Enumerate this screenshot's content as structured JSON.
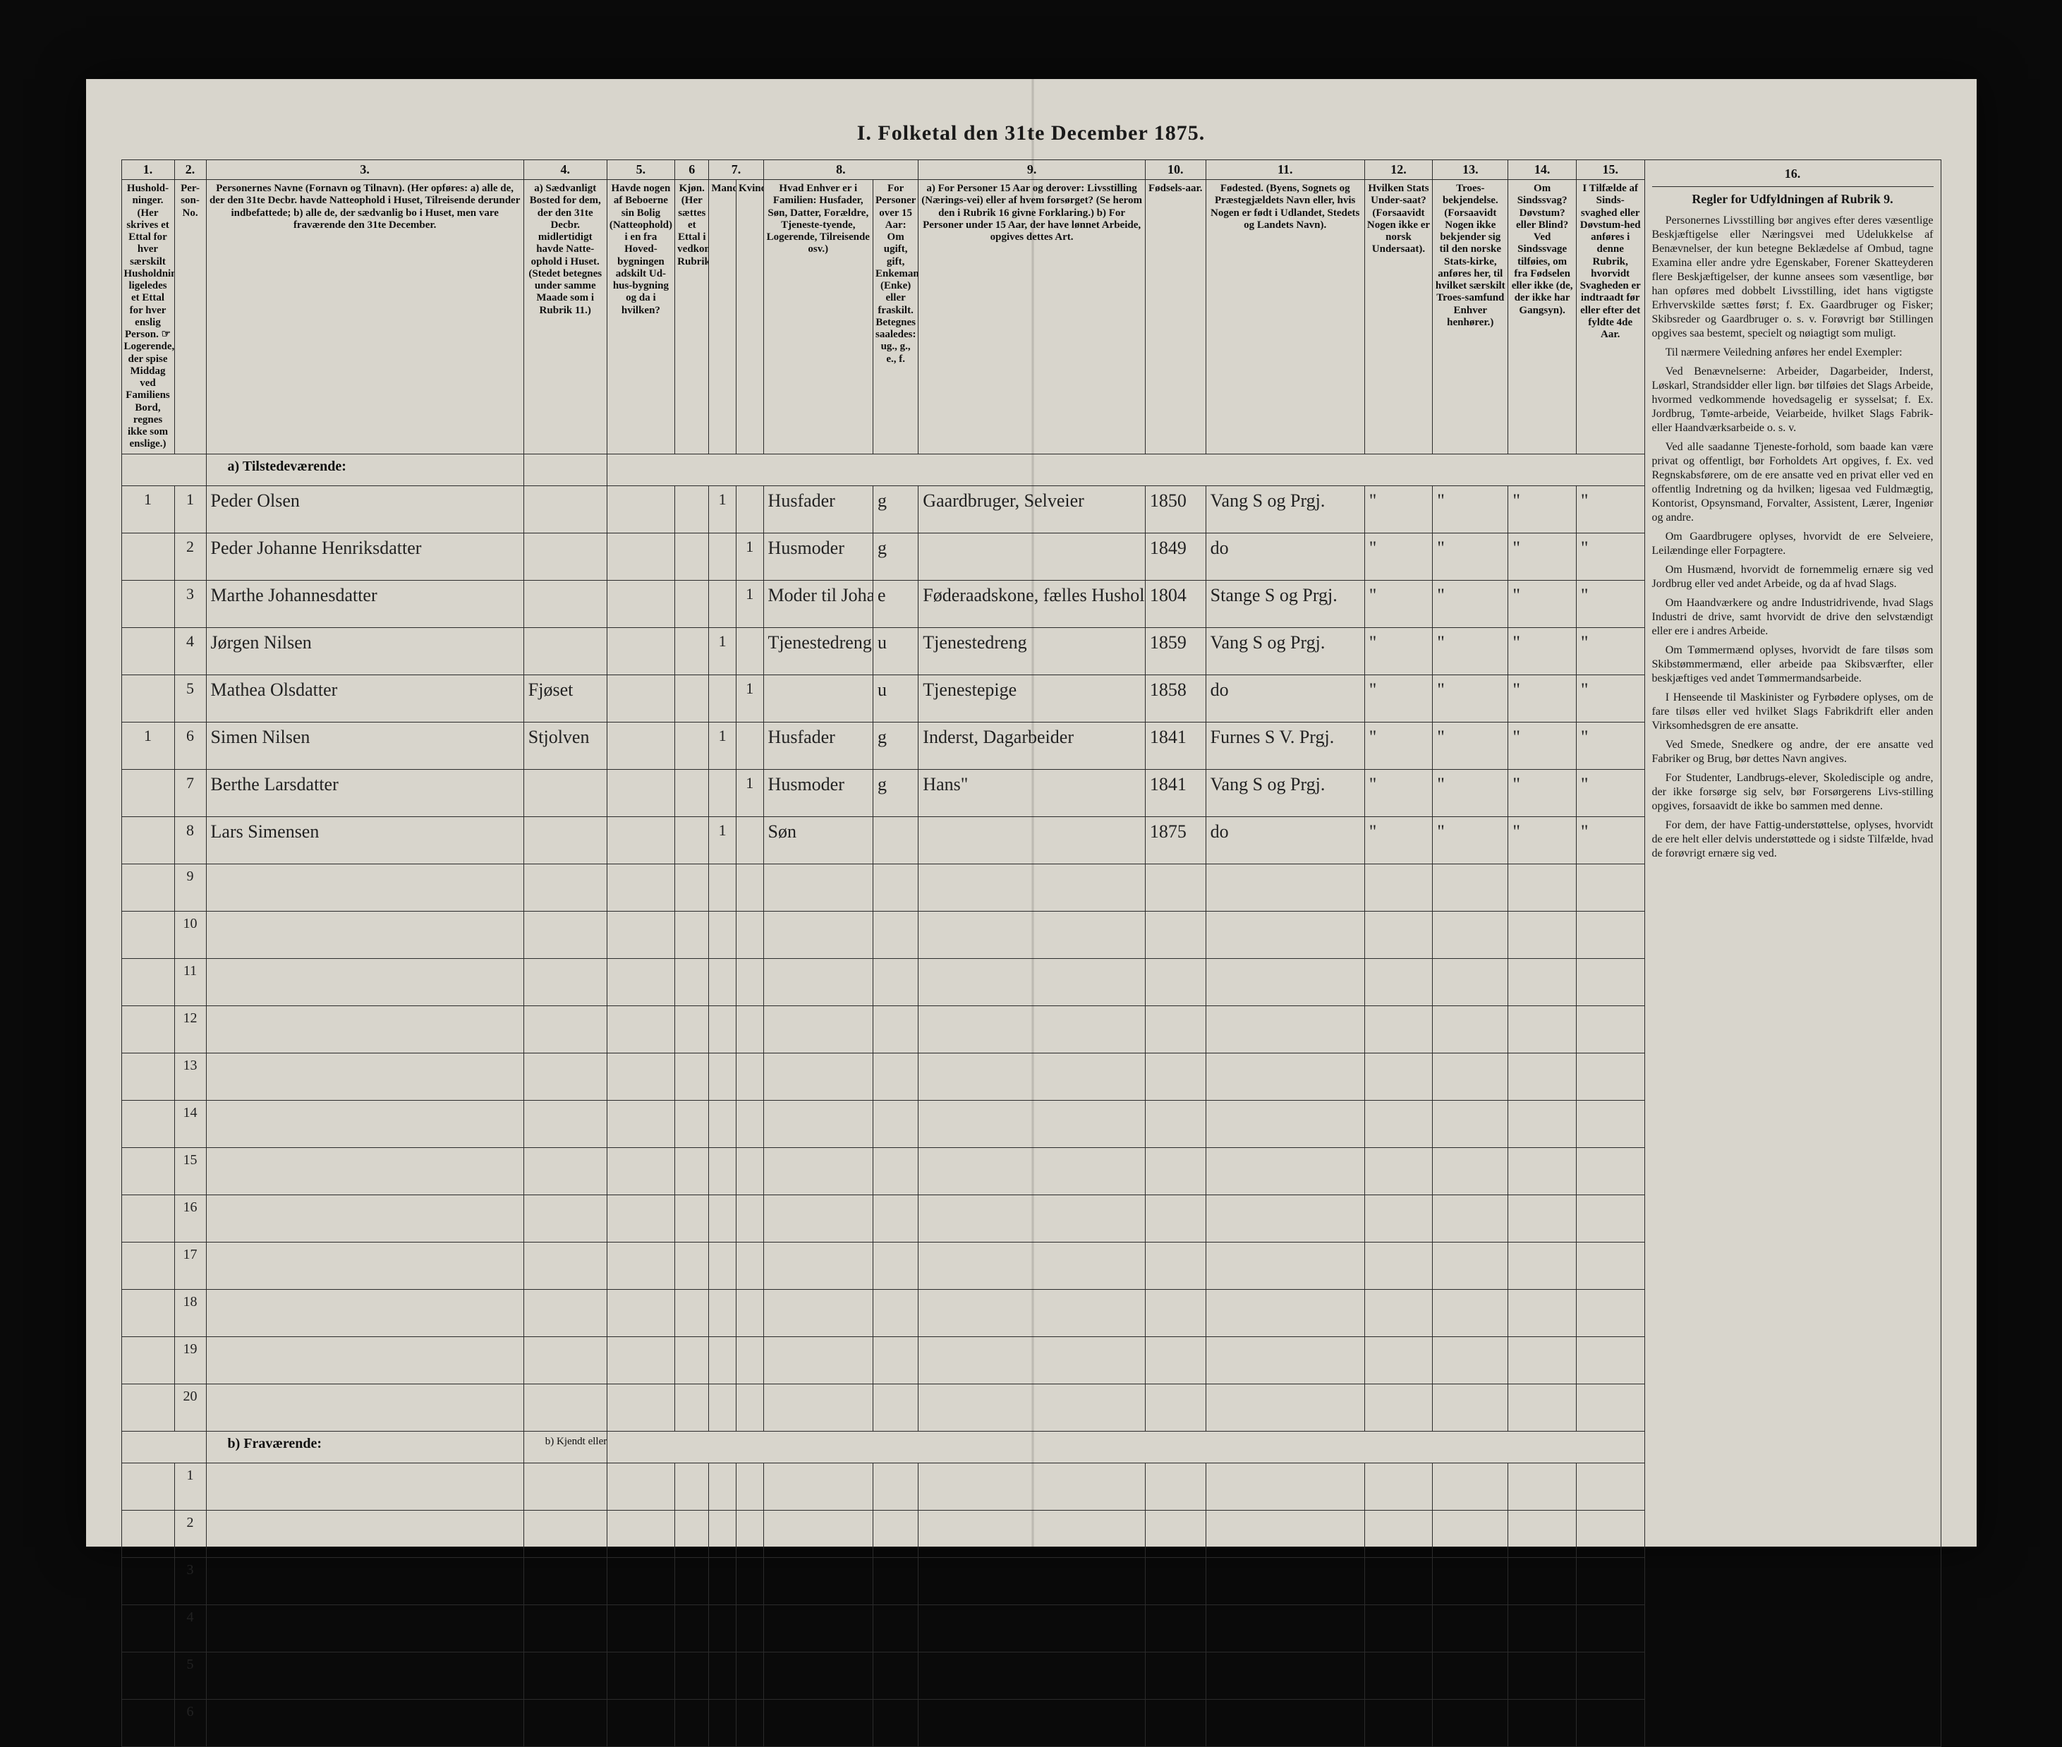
{
  "title": "I.  Folketal den 31te December 1875.",
  "colnums": [
    "1.",
    "2.",
    "3.",
    "4.",
    "5.",
    "6",
    "7.",
    "8.",
    "9.",
    "10.",
    "11.",
    "12.",
    "13.",
    "14.",
    "15.",
    "16."
  ],
  "headers": {
    "c1": "Hushold-\nninger.\n(Her skrives et Ettal for hver særskilt Husholdning; ligeledes et Ettal for hver enslig Person.\n☞ Logerende, der spise Middag ved Familiens Bord, regnes ikke som enslige.)",
    "c2": "Per-\nson-\nNo.",
    "c3": "Personernes Navne (Fornavn og Tilnavn).\n(Her opføres:\na) alle de, der den 31te Decbr. havde Natteophold i Huset, Tilreisende derunder indbefattede;\nb) alle de, der sædvanlig bo i Huset, men vare fraværende den 31te December.",
    "c4": "a) Sædvanligt Bosted for dem, der den 31te Decbr. midlertidigt havde Natte-ophold i Huset. (Stedet betegnes under samme Maade som i Rubrik 11.)",
    "c5": "Havde nogen af Beboerne sin Bolig (Natteophold) i en fra Hoved-bygningen adskilt Ud-hus-bygning og da i hvilken?",
    "c6": "Kjøn.\n(Her sættes et Ettal i vedkommende Rubrik.)",
    "c7a": "Mandkjøn.",
    "c7b": "Kvindekjøn.",
    "c8": "Hvad Enhver er i Familien:\nHusfader, Søn, Datter, Forældre, Tjeneste-tyende, Logerende, Tilreisende osv.)",
    "c8b": "For Personer over 15 Aar: Om ugift, gift, Enkemand (Enke) eller fraskilt.\nBetegnes saaledes: ug., g., e., f.",
    "c9": "a) For Personer 15 Aar og derover: Livsstilling (Nærings-vei) eller af hvem forsørget? (Se herom den i Rubrik 16 givne Forklaring.)\nb) For Personer under 15 Aar, der have lønnet Arbeide, opgives dettes Art.",
    "c10": "Fødsels-aar.",
    "c11": "Fødested.\n(Byens, Sognets og Præstegjældets Navn eller, hvis Nogen er født i Udlandet, Stedets og Landets Navn).",
    "c12": "Hvilken Stats Under-saat?\n(Forsaavidt Nogen ikke er norsk Undersaat).",
    "c13": "Troes-bekjendelse.\n(Forsaavidt Nogen ikke bekjender sig til den norske Stats-kirke, anføres her, til hvilket særskilt Troes-samfund Enhver henhører.)",
    "c14": "Om Sindssvag? Døvstum? eller Blind?\nVed Sindssvage tilføies, om fra Fødselen eller ikke (de, der ikke har Gangsyn).",
    "c15": "I Tilfælde af Sinds-svaghed eller Døvstum-hed anføres i denne Rubrik, hvorvidt Svagheden er indtraadt før eller efter det fyldte 4de Aar."
  },
  "section_a": "a) Tilstedeværende:",
  "section_b": "b) Fraværende:",
  "col4_note_b": "b) Kjendt eller formodet Opholdssted.",
  "rows": [
    {
      "hh": "1",
      "no": "1",
      "name": "Peder Olsen",
      "c4": "",
      "c5": "",
      "m": "1",
      "k": "",
      "role": "Husfader",
      "civ": "g",
      "occ": "Gaardbruger, Selveier",
      "year": "1850",
      "place": "Vang S og Prgj.",
      "c12": "\"",
      "c13": "\"",
      "c14": "\"",
      "c15": "\""
    },
    {
      "hh": "",
      "no": "2",
      "name": "Peder Johanne Henriksdatter",
      "c4": "",
      "c5": "",
      "m": "",
      "k": "1",
      "role": "Husmoder",
      "civ": "g",
      "occ": "",
      "year": "1849",
      "place": "do",
      "c12": "\"",
      "c13": "\"",
      "c14": "\"",
      "c15": "\""
    },
    {
      "hh": "",
      "no": "3",
      "name": "Marthe Johannesdatter",
      "c4": "",
      "c5": "",
      "m": "",
      "k": "1",
      "role": "Moder til Johanne",
      "civ": "e",
      "occ": "Føderaadskone, fælles Husholdning",
      "year": "1804",
      "place": "Stange S og Prgj.",
      "c12": "\"",
      "c13": "\"",
      "c14": "\"",
      "c15": "\""
    },
    {
      "hh": "",
      "no": "4",
      "name": "Jørgen Nilsen",
      "c4": "",
      "c5": "",
      "m": "1",
      "k": "",
      "role": "Tjenestedreng",
      "civ": "u",
      "occ": "Tjenestedreng",
      "year": "1859",
      "place": "Vang S og Prgj.",
      "c12": "\"",
      "c13": "\"",
      "c14": "\"",
      "c15": "\""
    },
    {
      "hh": "",
      "no": "5",
      "name": "Mathea Olsdatter",
      "c4": "Fjøset",
      "c5": "",
      "m": "",
      "k": "1",
      "role": "",
      "civ": "u",
      "occ": "Tjenestepige",
      "year": "1858",
      "place": "do",
      "c12": "\"",
      "c13": "\"",
      "c14": "\"",
      "c15": "\""
    },
    {
      "hh": "1",
      "no": "6",
      "name": "Simen Nilsen",
      "c4": "Stjolven",
      "c5": "",
      "m": "1",
      "k": "",
      "role": "Husfader",
      "civ": "g",
      "occ": "Inderst, Dagarbeider",
      "year": "1841",
      "place": "Furnes S V. Prgj.",
      "c12": "\"",
      "c13": "\"",
      "c14": "\"",
      "c15": "\""
    },
    {
      "hh": "",
      "no": "7",
      "name": "Berthe Larsdatter",
      "c4": "",
      "c5": "",
      "m": "",
      "k": "1",
      "role": "Husmoder",
      "civ": "g",
      "occ": "Hans\"",
      "year": "1841",
      "place": "Vang S og Prgj.",
      "c12": "\"",
      "c13": "\"",
      "c14": "\"",
      "c15": "\""
    },
    {
      "hh": "",
      "no": "8",
      "name": "Lars Simensen",
      "c4": "",
      "c5": "",
      "m": "1",
      "k": "",
      "role": "Søn",
      "civ": "",
      "occ": "",
      "year": "1875",
      "place": "do",
      "c12": "\"",
      "c13": "\"",
      "c14": "\"",
      "c15": "\""
    }
  ],
  "empty_a": [
    "9",
    "10",
    "11",
    "12",
    "13",
    "14",
    "15",
    "16",
    "17",
    "18",
    "19",
    "20"
  ],
  "empty_b": [
    "1",
    "2",
    "3",
    "4",
    "5",
    "6"
  ],
  "rubrik9": {
    "title": "Regler for Udfyldningen\naf\nRubrik 9.",
    "paras": [
      "Personernes Livsstilling bør angives efter deres væsentlige Beskjæftigelse eller Næringsvei med Udelukkelse af Benævnelser, der kun betegne Beklædelse af Ombud, tagne Examina eller andre ydre Egenskaber, Forener Skatteyderen flere Beskjæftigelser, der kunne ansees som væsentlige, bør han opføres med dobbelt Livsstilling, idet hans vigtigste Erhvervskilde sættes først; f. Ex. Gaardbruger og Fisker; Skibsreder og Gaardbruger o. s. v. Forøvrigt bør Stillingen opgives saa bestemt, specielt og nøiagtigt som muligt.",
      "Til nærmere Veiledning anføres her endel Exempler:",
      "Ved Benævnelserne: Arbeider, Dagarbeider, Inderst, Løskarl, Strandsidder eller lign. bør tilføies det Slags Arbeide, hvormed vedkommende hovedsagelig er sysselsat; f. Ex. Jordbrug, Tømte-arbeide, Veiarbeide, hvilket Slags Fabrik- eller Haandværksarbeide o. s. v.",
      "Ved alle saadanne Tjeneste-forhold, som baade kan være privat og offentligt, bør Forholdets Art opgives, f. Ex. ved Regnskabsførere, om de ere ansatte ved en privat eller ved en offentlig Indretning og da hvilken; ligesaa ved Fuldmægtig, Kontorist, Opsynsmand, Forvalter, Assistent, Lærer, Ingeniør og andre.",
      "Om Gaardbrugere oplyses, hvorvidt de ere Selveiere, Leilændinge eller Forpagtere.",
      "Om Husmænd, hvorvidt de fornemmelig ernære sig ved Jordbrug eller ved andet Arbeide, og da af hvad Slags.",
      "Om Haandværkere og andre Industridrivende, hvad Slags Industri de drive, samt hvorvidt de drive den selvstændigt eller ere i andres Arbeide.",
      "Om Tømmermænd oplyses, hvorvidt de fare tilsøs som Skibstømmermænd, eller arbeide paa Skibsværfter, eller beskjæftiges ved andet Tømmermandsarbeide.",
      "I Henseende til Maskinister og Fyrbødere oplyses, om de fare tilsøs eller ved hvilket Slags Fabrikdrift eller anden Virksomhedsgren de ere ansatte.",
      "Ved Smede, Snedkere og andre, der ere ansatte ved Fabriker og Brug, bør dettes Navn angives.",
      "For Studenter, Landbrugs-elever, Skoledisciple og andre, der ikke forsørge sig selv, bør Forsørgerens Livs-stilling opgives, forsaavidt de ikke bo sammen med denne.",
      "For dem, der have Fattig-understøttelse, oplyses, hvorvidt de ere helt eller delvis understøttede og i sidste Tilfælde, hvad de forøvrigt ernære sig ved."
    ]
  }
}
